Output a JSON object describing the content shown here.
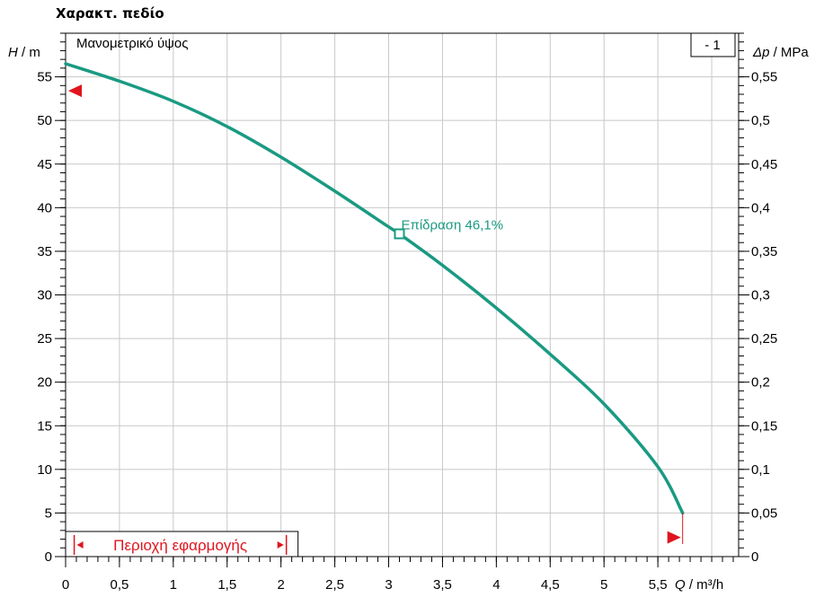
{
  "page_title": "Χαρακτ. πεδίο",
  "chart_data": {
    "type": "line",
    "title": "Μανομετρικό ύψος",
    "series_box_label": "- 1",
    "xlabel": {
      "symbol": "Q",
      "unit": " / m³/h"
    },
    "ylabel_left": {
      "symbol": "H",
      "unit": " / m"
    },
    "ylabel_right": {
      "symbol": "Δp",
      "unit": " / MPa"
    },
    "xlim": [
      0,
      6.25
    ],
    "ylim": [
      0,
      60
    ],
    "y2lim": [
      0,
      0.6
    ],
    "x_ticks": [
      "0",
      "0,5",
      "1",
      "1,5",
      "2",
      "2,5",
      "3",
      "3,5",
      "4",
      "4,5",
      "5",
      "5,5"
    ],
    "x_tick_values": [
      0,
      0.5,
      1,
      1.5,
      2,
      2.5,
      3,
      3.5,
      4,
      4.5,
      5,
      5.5
    ],
    "y_ticks": [
      "0",
      "5",
      "10",
      "15",
      "20",
      "25",
      "30",
      "35",
      "40",
      "45",
      "50",
      "55"
    ],
    "y_tick_values": [
      0,
      5,
      10,
      15,
      20,
      25,
      30,
      35,
      40,
      45,
      50,
      55
    ],
    "y2_ticks": [
      "0",
      "0,05",
      "0,1",
      "0,15",
      "0,2",
      "0,25",
      "0,3",
      "0,35",
      "0,4",
      "0,45",
      "0,5",
      "0,55"
    ],
    "y2_tick_values": [
      0,
      0.05,
      0.1,
      0.15,
      0.2,
      0.25,
      0.3,
      0.35,
      0.4,
      0.45,
      0.5,
      0.55
    ],
    "grid": true,
    "series": [
      {
        "color": "#1a9a82",
        "x": [
          0,
          0.5,
          1,
          1.5,
          2,
          2.5,
          3,
          3.1,
          3.5,
          4,
          4.5,
          5,
          5.5,
          5.73
        ],
        "y": [
          56.5,
          54.5,
          52.2,
          49.3,
          45.8,
          41.9,
          37.8,
          37.0,
          33.4,
          28.5,
          23.2,
          17.5,
          10.3,
          5.0
        ]
      }
    ],
    "operating_point": {
      "x": 3.1,
      "y": 37.0,
      "label": "Επίδραση  46,1%"
    },
    "left_marker": {
      "x": 0,
      "y": 53.4
    },
    "right_marker": {
      "x": 5.73,
      "y": 2.2
    },
    "application_range": {
      "label": "Περιοχή εφαρμογής",
      "x_start": 0.08,
      "x_end": 2.05,
      "color": "#e0141e"
    }
  }
}
